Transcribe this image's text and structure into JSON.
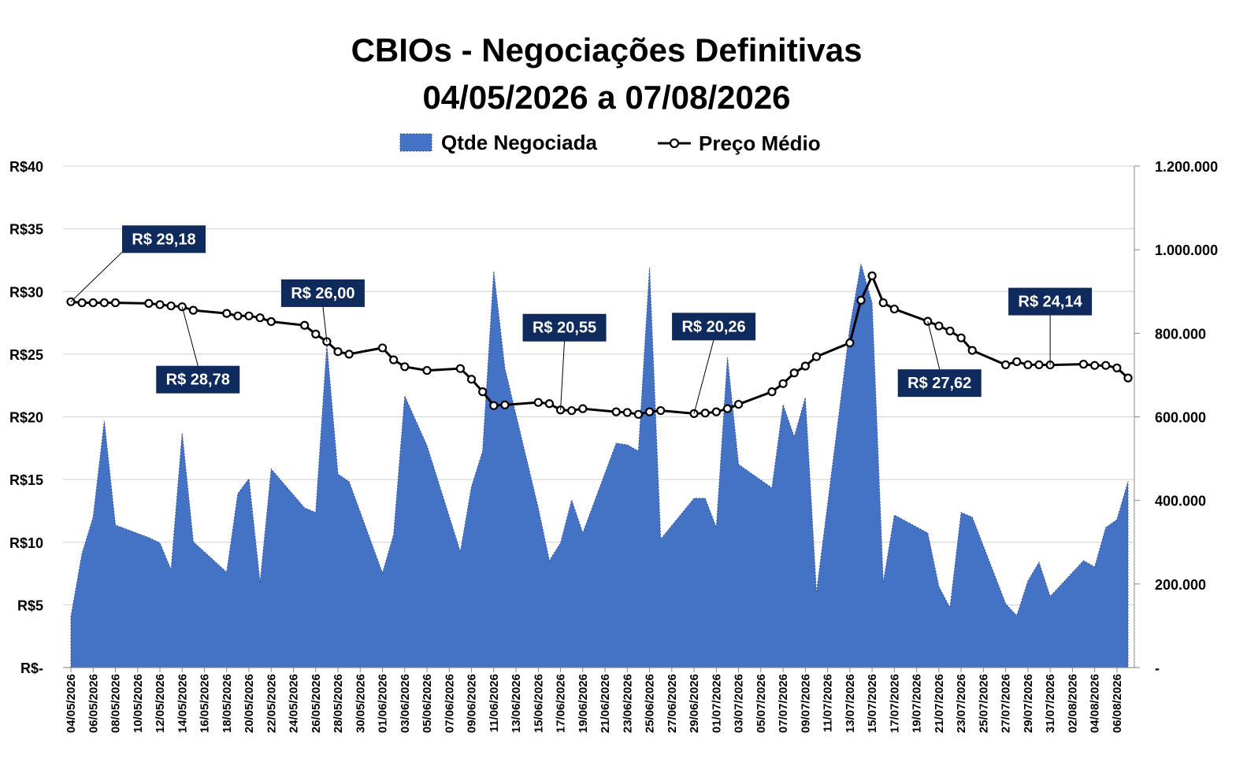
{
  "chart_data": {
    "type": "combo",
    "title": "CBIOs - Negociações Definitivas",
    "subtitle": "04/05/2026 a 07/08/2026",
    "legend": "top",
    "grid": true,
    "x": [
      "04/05/2026",
      "05/05/2026",
      "06/05/2026",
      "07/05/2026",
      "08/05/2026",
      "11/05/2026",
      "12/05/2026",
      "13/05/2026",
      "14/05/2026",
      "15/05/2026",
      "18/05/2026",
      "19/05/2026",
      "20/05/2026",
      "21/05/2026",
      "22/05/2026",
      "25/05/2026",
      "26/05/2026",
      "27/05/2026",
      "28/05/2026",
      "29/05/2026",
      "01/06/2026",
      "02/06/2026",
      "03/06/2026",
      "05/06/2026",
      "08/06/2026",
      "09/06/2026",
      "10/06/2026",
      "11/06/2026",
      "12/06/2026",
      "15/06/2026",
      "16/06/2026",
      "17/06/2026",
      "18/06/2026",
      "19/06/2026",
      "22/06/2026",
      "23/06/2026",
      "24/06/2026",
      "25/06/2026",
      "26/06/2026",
      "29/06/2026",
      "30/06/2026",
      "01/07/2026",
      "02/07/2026",
      "03/07/2026",
      "06/07/2026",
      "07/07/2026",
      "08/07/2026",
      "09/07/2026",
      "10/07/2026",
      "13/07/2026",
      "14/07/2026",
      "15/07/2026",
      "16/07/2026",
      "17/07/2026",
      "20/07/2026",
      "21/07/2026",
      "22/07/2026",
      "23/07/2026",
      "24/07/2026",
      "27/07/2026",
      "28/07/2026",
      "29/07/2026",
      "30/07/2026",
      "31/07/2026",
      "03/08/2026",
      "04/08/2026",
      "05/08/2026",
      "06/08/2026",
      "07/08/2026"
    ],
    "xlim": [
      "04/05/2026",
      "07/08/2026"
    ],
    "xticks": [
      "04/05/2026",
      "06/05/2026",
      "08/05/2026",
      "10/05/2026",
      "12/05/2026",
      "14/05/2026",
      "16/05/2026",
      "18/05/2026",
      "20/05/2026",
      "22/05/2026",
      "24/05/2026",
      "26/05/2026",
      "28/05/2026",
      "30/05/2026",
      "01/06/2026",
      "03/06/2026",
      "05/06/2026",
      "07/06/2026",
      "09/06/2026",
      "11/06/2026",
      "13/06/2026",
      "15/06/2026",
      "17/06/2026",
      "19/06/2026",
      "21/06/2026",
      "23/06/2026",
      "25/06/2026",
      "27/06/2026",
      "29/06/2026",
      "01/07/2026",
      "03/07/2026",
      "05/07/2026",
      "07/07/2026",
      "09/07/2026",
      "11/07/2026",
      "13/07/2026",
      "15/07/2026",
      "17/07/2026",
      "19/07/2026",
      "21/07/2026",
      "23/07/2026",
      "25/07/2026",
      "27/07/2026",
      "29/07/2026",
      "31/07/2026",
      "02/08/2026",
      "04/08/2026",
      "06/08/2026"
    ],
    "ylim": [
      0,
      40
    ],
    "yticks": [
      {
        "value": 0,
        "label": "R$-"
      },
      {
        "value": 5,
        "label": "R$5"
      },
      {
        "value": 10,
        "label": "R$10"
      },
      {
        "value": 15,
        "label": "R$15"
      },
      {
        "value": 20,
        "label": "R$20"
      },
      {
        "value": 25,
        "label": "R$25"
      },
      {
        "value": 30,
        "label": "R$30"
      },
      {
        "value": 35,
        "label": "R$35"
      },
      {
        "value": 40,
        "label": "R$40"
      }
    ],
    "y2lim": [
      0,
      1200000
    ],
    "y2ticks": [
      {
        "value": 0,
        "label": "-"
      },
      {
        "value": 200000,
        "label": "200.000"
      },
      {
        "value": 400000,
        "label": "400.000"
      },
      {
        "value": 600000,
        "label": "600.000"
      },
      {
        "value": 800000,
        "label": "800.000"
      },
      {
        "value": 1000000,
        "label": "1.000.000"
      },
      {
        "value": 1200000,
        "label": "1.200.000"
      }
    ],
    "series": [
      {
        "name": "Qtde Negociada",
        "type": "area",
        "axis": "y2",
        "color": "#4472c4",
        "values": [
          122000,
          273000,
          360000,
          590000,
          341000,
          311000,
          298000,
          234000,
          561000,
          301000,
          228000,
          416000,
          452000,
          203000,
          475000,
          382000,
          371000,
          772000,
          463000,
          445000,
          226000,
          318000,
          650000,
          531000,
          277000,
          433000,
          518000,
          948000,
          716000,
          382000,
          256000,
          298000,
          401000,
          322000,
          537000,
          533000,
          518000,
          957000,
          307000,
          405000,
          405000,
          335000,
          742000,
          486000,
          430000,
          629000,
          552000,
          646000,
          179000,
          814000,
          966000,
          872000,
          203000,
          365000,
          322000,
          194000,
          143000,
          371000,
          360000,
          153000,
          124000,
          207000,
          252000,
          170000,
          256000,
          241000,
          335000,
          354000,
          445000
        ]
      },
      {
        "name": "Preço Médio",
        "type": "line",
        "color": "#000000",
        "values": [
          29.18,
          29.1,
          29.1,
          29.1,
          29.1,
          29.05,
          28.95,
          28.85,
          28.78,
          28.5,
          28.25,
          28.05,
          28.05,
          27.9,
          27.6,
          27.3,
          26.6,
          26.0,
          25.2,
          25.0,
          25.5,
          24.55,
          24.0,
          23.7,
          23.85,
          23.0,
          22.0,
          20.9,
          20.95,
          21.15,
          21.05,
          20.55,
          20.5,
          20.65,
          20.4,
          20.35,
          20.2,
          20.4,
          20.5,
          20.26,
          20.3,
          20.4,
          20.65,
          21.0,
          22.0,
          22.65,
          23.5,
          24.05,
          24.8,
          25.9,
          29.3,
          31.25,
          29.1,
          28.6,
          27.62,
          27.25,
          26.85,
          26.3,
          25.3,
          24.15,
          24.4,
          24.15,
          24.15,
          24.14,
          24.2,
          24.1,
          24.1,
          23.9,
          23.1
        ],
        "value_labels": [
          "R$ 29,18",
          null,
          null,
          null,
          null,
          null,
          null,
          null,
          "R$ 28,78",
          null,
          null,
          null,
          null,
          null,
          null,
          null,
          null,
          "R$ 26,00",
          null,
          null,
          null,
          null,
          null,
          null,
          null,
          null,
          null,
          null,
          null,
          null,
          null,
          "R$ 20,55",
          null,
          null,
          null,
          null,
          null,
          null,
          null,
          "R$ 20,26",
          null,
          null,
          null,
          null,
          null,
          null,
          null,
          null,
          null,
          null,
          null,
          null,
          null,
          null,
          "R$ 27,62",
          null,
          null,
          null,
          null,
          null,
          null,
          null,
          null,
          "R$ 24,14",
          null,
          null,
          null,
          null,
          null
        ]
      }
    ]
  }
}
